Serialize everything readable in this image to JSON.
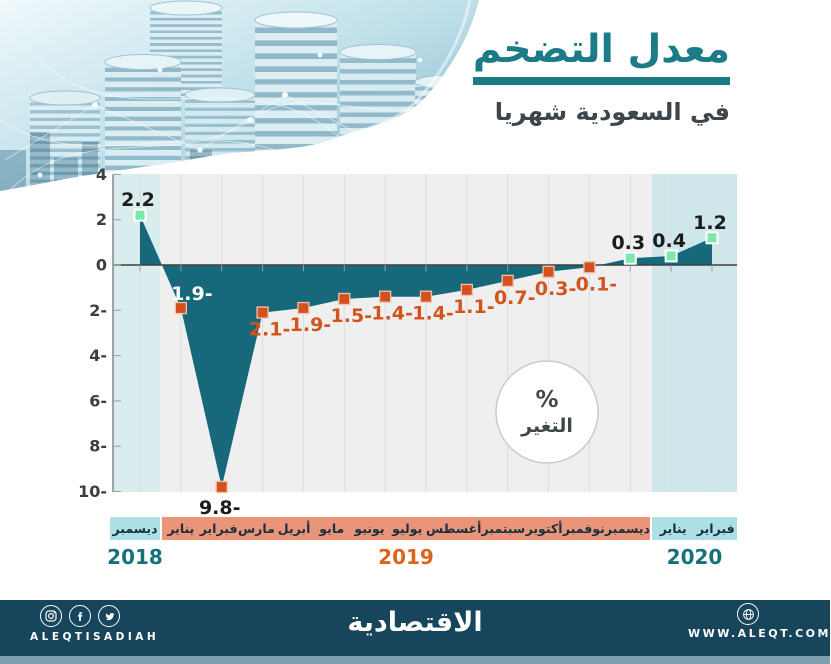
{
  "header": {
    "title": "معدل التضخم",
    "subtitle": "في السعودية شهريا"
  },
  "colors": {
    "title_teal": "#1b7c87",
    "area_teal": "#16687a",
    "plot_gray": "#efefef",
    "cyan_band": "#d9edef",
    "cyan_band_right": "#cfe7ea",
    "cyan_cell": "#aedfe4",
    "salmon_band": "#ea9579",
    "orange_marker": "#d2511e",
    "green_marker": "#79e9ab",
    "orange_label": "#d2541c",
    "dark_label": "#1c1c1c",
    "white_label": "#ffffff",
    "footer_navy": "#16455c",
    "footer_strip": "#7f9eae"
  },
  "chart_data": {
    "type": "area",
    "title": "معدل التضخم في السعودية شهريا",
    "ylabel": "% التغير",
    "ylim": [
      -10,
      4
    ],
    "yticks_values": [
      4,
      2,
      0,
      -2,
      -4,
      -6,
      -8,
      -10
    ],
    "yticks_display": [
      "4",
      "2",
      "0",
      "2-",
      "4-",
      "6-",
      "8-",
      "10-"
    ],
    "grid": "vertical-only",
    "baseline": 0,
    "circle_badge": {
      "line1": "%",
      "line2": "التغير"
    },
    "years": [
      "2018",
      "2019",
      "2020"
    ],
    "months_2018": [
      "ديسمبر"
    ],
    "months_2019": [
      "يناير",
      "فبراير",
      "مارس",
      "أبريل",
      "مايو",
      "يونيو",
      "يوليو",
      "أغسطس",
      "سبتمبر",
      "أكتوبر",
      "نوفمبر",
      "ديسمبر"
    ],
    "months_2020": [
      "يناير",
      "فبراير"
    ],
    "points": [
      {
        "month": "ديسمبر",
        "year": "2018",
        "value": 2.2,
        "label": "2.2",
        "side": "above",
        "lcolor": "dark"
      },
      {
        "month": "يناير",
        "year": "2019",
        "value": -1.9,
        "label": "1.9-",
        "side": "above",
        "lcolor": "white"
      },
      {
        "month": "فبراير",
        "year": "2019",
        "value": -9.8,
        "label": "9.8-",
        "side": "below",
        "lcolor": "dark"
      },
      {
        "month": "مارس",
        "year": "2019",
        "value": -2.1,
        "label": "2.1-",
        "side": "below",
        "lcolor": "orange"
      },
      {
        "month": "أبريل",
        "year": "2019",
        "value": -1.9,
        "label": "1.9-",
        "side": "below",
        "lcolor": "orange"
      },
      {
        "month": "مايو",
        "year": "2019",
        "value": -1.5,
        "label": "1.5-",
        "side": "below",
        "lcolor": "orange"
      },
      {
        "month": "يونيو",
        "year": "2019",
        "value": -1.4,
        "label": "1.4-",
        "side": "below",
        "lcolor": "orange"
      },
      {
        "month": "يوليو",
        "year": "2019",
        "value": -1.4,
        "label": "1.4-",
        "side": "below",
        "lcolor": "orange"
      },
      {
        "month": "أغسطس",
        "year": "2019",
        "value": -1.1,
        "label": "1.1-",
        "side": "below",
        "lcolor": "orange"
      },
      {
        "month": "سبتمبر",
        "year": "2019",
        "value": -0.7,
        "label": "0.7-",
        "side": "below",
        "lcolor": "orange"
      },
      {
        "month": "أكتوبر",
        "year": "2019",
        "value": -0.3,
        "label": "0.3-",
        "side": "below",
        "lcolor": "orange"
      },
      {
        "month": "نوفمبر",
        "year": "2019",
        "value": -0.1,
        "label": "0.1-",
        "side": "below",
        "lcolor": "orange"
      },
      {
        "month": "ديسمبر",
        "year": "2019",
        "value": 0.3,
        "label": "0.3",
        "side": "above",
        "lcolor": "dark"
      },
      {
        "month": "يناير",
        "year": "2020",
        "value": 0.4,
        "label": "0.4",
        "side": "above",
        "lcolor": "dark"
      },
      {
        "month": "فبراير",
        "year": "2020",
        "value": 1.2,
        "label": "1.2",
        "side": "above",
        "lcolor": "dark"
      }
    ]
  },
  "footer": {
    "handle": "ALEQTISADIAH",
    "logo": "الاقتصادية",
    "url": "WWW.ALEQT.COM"
  }
}
